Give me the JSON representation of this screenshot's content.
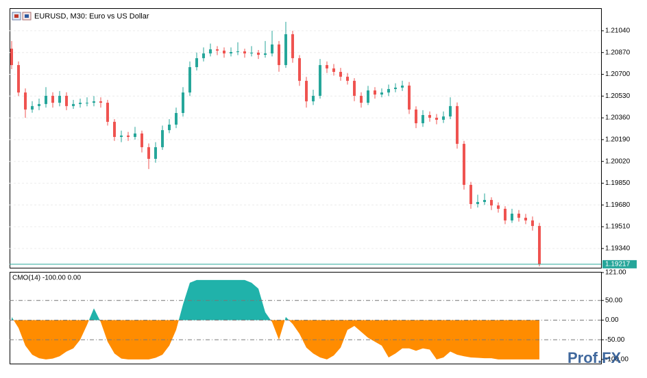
{
  "chart_data": [
    {
      "type": "candlestick",
      "title": "EURUSD, M30:  Euro vs US Dollar",
      "up_color": "#26a69a",
      "down_color": "#ef5350",
      "grid": true,
      "ylim": [
        1.19195,
        1.21216
      ],
      "yticks": [
        {
          "value": 1.2104,
          "label": "1.21040"
        },
        {
          "value": 1.2087,
          "label": "1.20870"
        },
        {
          "value": 1.207,
          "label": "1.20700"
        },
        {
          "value": 1.2053,
          "label": "1.20530"
        },
        {
          "value": 1.2036,
          "label": "1.20360"
        },
        {
          "value": 1.2019,
          "label": "1.20190"
        },
        {
          "value": 1.2002,
          "label": "1.20020"
        },
        {
          "value": 1.1985,
          "label": "1.19850"
        },
        {
          "value": 1.1968,
          "label": "1.19680"
        },
        {
          "value": 1.1951,
          "label": "1.19510"
        },
        {
          "value": 1.1934,
          "label": "1.19340"
        }
      ],
      "last_price": 1.19217,
      "last_price_color": "#26a69a",
      "ohlc": [
        [
          1.209,
          1.2096,
          1.2074,
          1.20772
        ],
        [
          1.20772,
          1.208,
          1.2053,
          1.20558
        ],
        [
          1.20558,
          1.2059,
          1.2036,
          1.20425
        ],
        [
          1.20425,
          1.2049,
          1.204,
          1.20452
        ],
        [
          1.20452,
          1.2051,
          1.2042,
          1.20468
        ],
        [
          1.20468,
          1.206,
          1.2044,
          1.20532
        ],
        [
          1.20532,
          1.2056,
          1.2044,
          1.20478
        ],
        [
          1.20478,
          1.2057,
          1.2045,
          1.20532
        ],
        [
          1.20532,
          1.2056,
          1.2042,
          1.20452
        ],
        [
          1.20452,
          1.205,
          1.2043,
          1.20468
        ],
        [
          1.20468,
          1.2051,
          1.2044,
          1.20478
        ],
        [
          1.20478,
          1.2052,
          1.2045,
          1.20478
        ],
        [
          1.20478,
          1.2053,
          1.2045,
          1.20489
        ],
        [
          1.20489,
          1.2052,
          1.2044,
          1.20478
        ],
        [
          1.20478,
          1.205,
          1.203,
          1.20329
        ],
        [
          1.20329,
          1.2035,
          1.2018,
          1.20211
        ],
        [
          1.20211,
          1.2026,
          1.2017,
          1.20222
        ],
        [
          1.20222,
          1.2025,
          1.2018,
          1.20211
        ],
        [
          1.20211,
          1.2029,
          1.2019,
          1.20238
        ],
        [
          1.20238,
          1.2026,
          1.2009,
          1.20131
        ],
        [
          1.20131,
          1.2016,
          1.1996,
          1.2004
        ],
        [
          1.2004,
          1.2017,
          1.2001,
          1.20131
        ],
        [
          1.20131,
          1.203,
          1.2011,
          1.20264
        ],
        [
          1.20264,
          1.2035,
          1.2024,
          1.20307
        ],
        [
          1.20307,
          1.2044,
          1.2028,
          1.20398
        ],
        [
          1.20398,
          1.206,
          1.2037,
          1.20558
        ],
        [
          1.20558,
          1.208,
          1.2053,
          1.20756
        ],
        [
          1.20756,
          1.2087,
          1.2073,
          1.20826
        ],
        [
          1.20826,
          1.2091,
          1.208,
          1.20863
        ],
        [
          1.20863,
          1.2094,
          1.2084,
          1.20895
        ],
        [
          1.20895,
          1.2092,
          1.2085,
          1.20885
        ],
        [
          1.20885,
          1.2091,
          1.2083,
          1.20863
        ],
        [
          1.20863,
          1.2091,
          1.2084,
          1.20874
        ],
        [
          1.20874,
          1.2095,
          1.2085,
          1.20879
        ],
        [
          1.20879,
          1.209,
          1.2083,
          1.20863
        ],
        [
          1.20863,
          1.2092,
          1.2084,
          1.20869
        ],
        [
          1.20869,
          1.2089,
          1.2082,
          1.20852
        ],
        [
          1.20852,
          1.2096,
          1.2083,
          1.20863
        ],
        [
          1.20863,
          1.2104,
          1.2084,
          1.20933
        ],
        [
          1.20933,
          1.2096,
          1.2072,
          1.20772
        ],
        [
          1.20772,
          1.2111,
          1.2075,
          1.21013
        ],
        [
          1.21013,
          1.2104,
          1.2079,
          1.20826
        ],
        [
          1.20826,
          1.2085,
          1.2061,
          1.20649
        ],
        [
          1.20649,
          1.2068,
          1.2044,
          1.20489
        ],
        [
          1.20489,
          1.2058,
          1.2046,
          1.20532
        ],
        [
          1.20532,
          1.2082,
          1.2051,
          1.20772
        ],
        [
          1.20772,
          1.208,
          1.2071,
          1.20746
        ],
        [
          1.20746,
          1.2078,
          1.2069,
          1.20719
        ],
        [
          1.20719,
          1.2075,
          1.2065,
          1.20681
        ],
        [
          1.20681,
          1.2071,
          1.2062,
          1.20649
        ],
        [
          1.20649,
          1.2067,
          1.2049,
          1.20532
        ],
        [
          1.20532,
          1.2056,
          1.2044,
          1.20478
        ],
        [
          1.20478,
          1.2061,
          1.2046,
          1.20574
        ],
        [
          1.20574,
          1.206,
          1.2051,
          1.20542
        ],
        [
          1.20542,
          1.2059,
          1.2052,
          1.20558
        ],
        [
          1.20558,
          1.2062,
          1.2053,
          1.20585
        ],
        [
          1.20585,
          1.2063,
          1.2056,
          1.20596
        ],
        [
          1.20596,
          1.2065,
          1.2057,
          1.20612
        ],
        [
          1.20612,
          1.2064,
          1.2039,
          1.20425
        ],
        [
          1.20425,
          1.2045,
          1.2028,
          1.20318
        ],
        [
          1.20318,
          1.2042,
          1.2029,
          1.20382
        ],
        [
          1.20382,
          1.2041,
          1.2033,
          1.20361
        ],
        [
          1.20361,
          1.2039,
          1.2031,
          1.20345
        ],
        [
          1.20345,
          1.2041,
          1.2032,
          1.20371
        ],
        [
          1.20371,
          1.2052,
          1.2035,
          1.20452
        ],
        [
          1.20452,
          1.2048,
          1.2012,
          1.20157
        ],
        [
          1.20157,
          1.2018,
          1.198,
          1.19837
        ],
        [
          1.19837,
          1.1986,
          1.1965,
          1.19687
        ],
        [
          1.19687,
          1.1976,
          1.1966,
          1.19703
        ],
        [
          1.19703,
          1.1977,
          1.1968,
          1.19719
        ],
        [
          1.19719,
          1.1974,
          1.1964,
          1.19676
        ],
        [
          1.19676,
          1.197,
          1.1962,
          1.1965
        ],
        [
          1.1965,
          1.1967,
          1.1953,
          1.19559
        ],
        [
          1.19559,
          1.1965,
          1.1954,
          1.19612
        ],
        [
          1.19612,
          1.1964,
          1.1955,
          1.1958
        ],
        [
          1.1958,
          1.1961,
          1.1953,
          1.19559
        ],
        [
          1.19559,
          1.1959,
          1.1948,
          1.19516
        ],
        [
          1.19516,
          1.1954,
          1.192,
          1.19217
        ]
      ]
    },
    {
      "type": "area",
      "title": "CMO(14) -100.00 0.00",
      "positive_color": "#20b2aa",
      "negative_color": "#ff8c00",
      "ylim": [
        -109,
        121
      ],
      "yticks": [
        {
          "value": 121,
          "label": "121.00"
        },
        {
          "value": 50,
          "label": "50.00"
        },
        {
          "value": 0,
          "label": "0.00"
        },
        {
          "value": -50,
          "label": "-50.00"
        },
        {
          "value": -100,
          "label": "-100.00"
        }
      ],
      "levels": [
        50,
        0,
        -50
      ],
      "values": [
        8,
        -20,
        -65,
        -88,
        -97,
        -100,
        -98,
        -92,
        -80,
        -72,
        -50,
        -12,
        30,
        -5,
        -55,
        -85,
        -98,
        -100,
        -100,
        -100,
        -100,
        -96,
        -88,
        -65,
        -25,
        40,
        95,
        102,
        102,
        102,
        102,
        102,
        102,
        102,
        102,
        95,
        80,
        20,
        -5,
        -50,
        8,
        -10,
        -35,
        -70,
        -85,
        -95,
        -100,
        -90,
        -70,
        -25,
        -15,
        -30,
        -45,
        -55,
        -65,
        -95,
        -85,
        -72,
        -72,
        -78,
        -72,
        -75,
        -100,
        -95,
        -80,
        -88,
        -92,
        -95,
        -96,
        -97,
        -97,
        -100,
        -100,
        -100,
        -100,
        -100,
        -100,
        -100
      ]
    }
  ],
  "watermark": "Prof.FX"
}
